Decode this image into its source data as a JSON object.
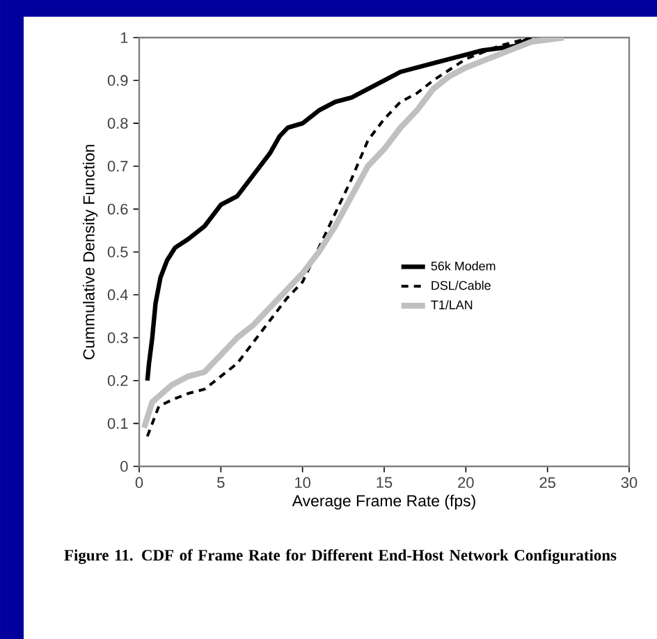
{
  "chart_data": {
    "type": "line",
    "xlabel": "Average Frame Rate (fps)",
    "ylabel": "Cummulative Density Function",
    "xlim": [
      0,
      30
    ],
    "xticks": [
      0,
      5,
      10,
      15,
      20,
      25,
      30
    ],
    "ylim": [
      0,
      1
    ],
    "yticks": [
      0,
      0.1,
      0.2,
      0.3,
      0.4,
      0.5,
      0.6,
      0.7,
      0.8,
      0.9,
      1
    ],
    "grid": false,
    "legend": "center",
    "marker": "none",
    "annotations": [
      "Figure 11. CDF of Frame Rate for Different End-Host Network Configurations"
    ],
    "series": [
      {
        "name": "56k Modem",
        "color": "#000000",
        "line_style": "solid",
        "x": [
          0.5,
          0.6,
          0.8,
          1.0,
          1.3,
          1.7,
          2.2,
          3,
          4,
          5,
          6,
          7,
          8,
          8.6,
          9.1,
          10,
          11,
          12,
          13,
          14,
          15,
          16,
          18,
          20,
          21,
          23,
          24
        ],
        "values": [
          0.2,
          0.24,
          0.3,
          0.38,
          0.44,
          0.48,
          0.51,
          0.53,
          0.56,
          0.61,
          0.63,
          0.68,
          0.73,
          0.77,
          0.79,
          0.8,
          0.83,
          0.85,
          0.86,
          0.88,
          0.9,
          0.92,
          0.94,
          0.96,
          0.97,
          0.98,
          1.0
        ]
      },
      {
        "name": "DSL/Cable",
        "color": "#000000",
        "line_style": "dashed",
        "x": [
          0.5,
          1.2,
          2,
          3,
          4,
          5,
          6,
          7,
          8,
          9,
          10,
          11,
          12,
          13,
          14,
          15,
          16,
          17,
          18,
          20,
          22,
          24
        ],
        "values": [
          0.07,
          0.14,
          0.155,
          0.17,
          0.18,
          0.21,
          0.24,
          0.29,
          0.34,
          0.39,
          0.43,
          null,
          0.59,
          0.67,
          0.76,
          0.81,
          0.85,
          0.87,
          0.9,
          0.95,
          0.98,
          1.0
        ]
      },
      {
        "name": "T1/LAN",
        "color": "#c0c0c0",
        "line_style": "solid",
        "x": [
          0.3,
          0.8,
          2,
          3,
          4,
          5,
          6,
          7,
          8,
          9,
          10,
          11,
          12,
          13,
          14,
          15,
          16,
          17,
          18,
          19,
          20,
          22,
          24,
          26
        ],
        "values": [
          0.09,
          0.15,
          0.19,
          0.21,
          0.22,
          0.26,
          0.3,
          0.33,
          0.37,
          0.41,
          0.45,
          0.5,
          0.56,
          0.63,
          0.7,
          0.74,
          0.79,
          0.83,
          0.88,
          0.91,
          0.93,
          0.96,
          0.99,
          1.0
        ]
      }
    ]
  }
}
